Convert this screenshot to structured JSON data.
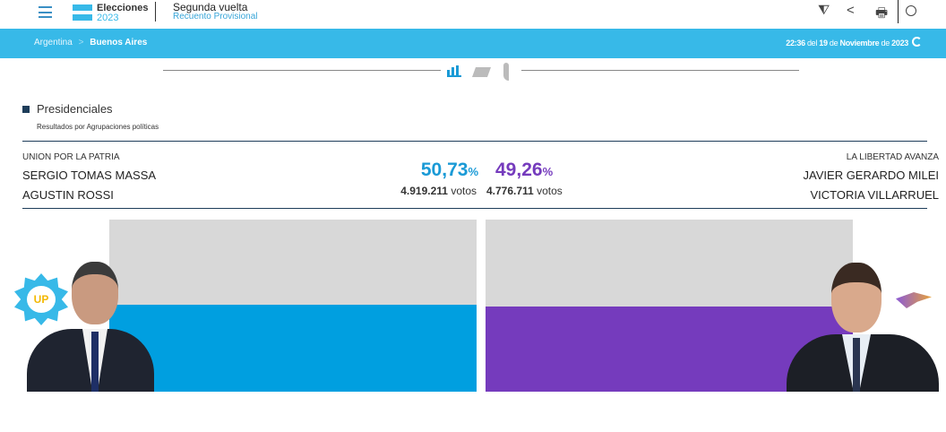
{
  "header": {
    "logo_title": "Elecciones",
    "logo_year": "2023",
    "title": "Segunda vuelta",
    "subtitle": "Recuento Provisional"
  },
  "breadcrumb": {
    "country": "Argentina",
    "separator": ">",
    "region": "Buenos Aires"
  },
  "timestamp": {
    "time": "22:36",
    "del": " del ",
    "day": "19",
    "de": " de ",
    "month": "Noviembre",
    "de2": " de ",
    "year": "2023"
  },
  "section": {
    "title": "Presidenciales",
    "subtitle": "Resultados por Agrupaciones políticas"
  },
  "candidates": [
    {
      "party": "UNION POR LA PATRIA",
      "president": "SERGIO TOMAS MASSA",
      "vice": "AGUSTIN ROSSI",
      "percent": "50,73",
      "percent_sign": "%",
      "votes": "4.919.211",
      "votes_label": "votos",
      "percent_value": 50.73,
      "color": "#009fe0",
      "logo_text": "UP"
    },
    {
      "party": "LA LIBERTAD AVANZA",
      "president": "JAVIER GERARDO MILEI",
      "vice": "VICTORIA VILLARRUEL",
      "percent": "49,26",
      "percent_sign": "%",
      "votes": "4.776.711",
      "votes_label": "votos",
      "percent_value": 49.26,
      "color": "#753bbd"
    }
  ]
}
